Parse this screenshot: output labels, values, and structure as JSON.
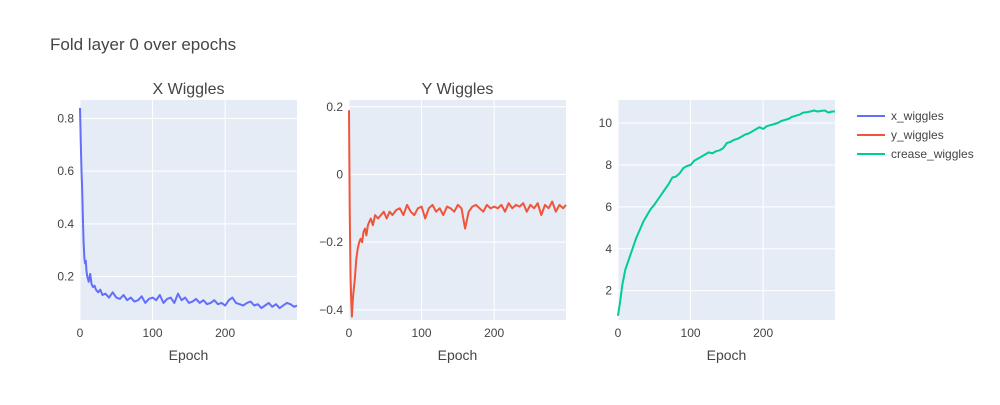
{
  "title": "Fold layer 0 over epochs",
  "colors": {
    "plot_bg": "#E5ECF6",
    "grid": "#FFFFFF",
    "x_wiggles": "#636EFA",
    "y_wiggles": "#EF553B",
    "crease_wiggles": "#00CC96"
  },
  "legend": {
    "placement": "right",
    "items": [
      "x_wiggles",
      "y_wiggles",
      "crease_wiggles"
    ]
  },
  "chart_data": [
    {
      "type": "line",
      "title": "X Wiggles",
      "xlabel": "Epoch",
      "ylabel": "",
      "xlim": [
        0,
        299
      ],
      "ylim": [
        0.035,
        0.87
      ],
      "xticks": [
        0,
        100,
        200
      ],
      "yticks": [
        0.2,
        0.4,
        0.6,
        0.8
      ],
      "ytick_labels": [
        "0.2",
        "0.4",
        "0.6",
        "0.8"
      ],
      "series": [
        {
          "name": "x_wiggles",
          "x": [
            0,
            1,
            2,
            3,
            4,
            5,
            6,
            7,
            8,
            9,
            10,
            12,
            14,
            16,
            18,
            20,
            22,
            25,
            28,
            31,
            35,
            40,
            45,
            50,
            55,
            60,
            65,
            70,
            75,
            80,
            85,
            90,
            95,
            100,
            105,
            110,
            115,
            120,
            125,
            130,
            135,
            140,
            145,
            150,
            155,
            160,
            165,
            170,
            175,
            180,
            185,
            190,
            195,
            200,
            205,
            210,
            215,
            220,
            225,
            230,
            235,
            240,
            245,
            250,
            255,
            260,
            265,
            270,
            275,
            280,
            285,
            290,
            295,
            299
          ],
          "y": [
            0.84,
            0.72,
            0.6,
            0.53,
            0.42,
            0.33,
            0.27,
            0.25,
            0.26,
            0.22,
            0.2,
            0.18,
            0.21,
            0.17,
            0.16,
            0.165,
            0.15,
            0.14,
            0.15,
            0.13,
            0.135,
            0.12,
            0.14,
            0.12,
            0.115,
            0.13,
            0.11,
            0.12,
            0.105,
            0.11,
            0.125,
            0.1,
            0.115,
            0.12,
            0.11,
            0.13,
            0.1,
            0.115,
            0.12,
            0.1,
            0.135,
            0.11,
            0.12,
            0.1,
            0.105,
            0.115,
            0.1,
            0.11,
            0.095,
            0.1,
            0.11,
            0.095,
            0.1,
            0.09,
            0.11,
            0.12,
            0.1,
            0.095,
            0.09,
            0.1,
            0.105,
            0.09,
            0.095,
            0.08,
            0.09,
            0.1,
            0.085,
            0.095,
            0.08,
            0.09,
            0.1,
            0.095,
            0.085,
            0.09
          ]
        }
      ]
    },
    {
      "type": "line",
      "title": "Y Wiggles",
      "xlabel": "Epoch",
      "ylabel": "",
      "xlim": [
        0,
        299
      ],
      "ylim": [
        -0.43,
        0.22
      ],
      "xticks": [
        0,
        100,
        200
      ],
      "yticks": [
        -0.4,
        -0.2,
        0,
        0.2
      ],
      "ytick_labels": [
        "−0.4",
        "−0.2",
        "0",
        "0.2"
      ],
      "series": [
        {
          "name": "y_wiggles",
          "x": [
            0,
            1,
            2,
            3,
            4,
            5,
            6,
            7,
            8,
            10,
            12,
            14,
            16,
            18,
            20,
            22,
            24,
            26,
            28,
            30,
            33,
            36,
            40,
            44,
            48,
            52,
            56,
            60,
            65,
            70,
            75,
            80,
            85,
            90,
            95,
            100,
            105,
            110,
            115,
            120,
            125,
            130,
            135,
            140,
            145,
            150,
            155,
            160,
            165,
            170,
            175,
            180,
            185,
            190,
            195,
            200,
            205,
            210,
            215,
            220,
            225,
            230,
            235,
            240,
            245,
            250,
            255,
            260,
            265,
            270,
            275,
            280,
            285,
            290,
            295,
            299
          ],
          "y": [
            0.19,
            -0.1,
            -0.3,
            -0.37,
            -0.42,
            -0.38,
            -0.35,
            -0.33,
            -0.31,
            -0.25,
            -0.22,
            -0.2,
            -0.19,
            -0.2,
            -0.17,
            -0.16,
            -0.18,
            -0.15,
            -0.14,
            -0.13,
            -0.15,
            -0.12,
            -0.13,
            -0.12,
            -0.11,
            -0.13,
            -0.11,
            -0.12,
            -0.105,
            -0.1,
            -0.12,
            -0.09,
            -0.11,
            -0.12,
            -0.1,
            -0.095,
            -0.13,
            -0.1,
            -0.09,
            -0.11,
            -0.1,
            -0.12,
            -0.095,
            -0.1,
            -0.11,
            -0.09,
            -0.1,
            -0.16,
            -0.11,
            -0.095,
            -0.09,
            -0.1,
            -0.11,
            -0.09,
            -0.1,
            -0.095,
            -0.1,
            -0.09,
            -0.11,
            -0.085,
            -0.1,
            -0.09,
            -0.095,
            -0.085,
            -0.11,
            -0.09,
            -0.1,
            -0.085,
            -0.12,
            -0.09,
            -0.1,
            -0.08,
            -0.11,
            -0.09,
            -0.1,
            -0.09
          ]
        }
      ]
    },
    {
      "type": "line",
      "title": "",
      "xlabel": "Epoch",
      "ylabel": "",
      "xlim": [
        0,
        299
      ],
      "ylim": [
        0.6,
        11.1
      ],
      "xticks": [
        0,
        100,
        200
      ],
      "yticks": [
        2,
        4,
        6,
        8,
        10
      ],
      "ytick_labels": [
        "2",
        "4",
        "6",
        "8",
        "10"
      ],
      "series": [
        {
          "name": "crease_wiggles",
          "x": [
            0,
            3,
            6,
            10,
            15,
            20,
            25,
            30,
            35,
            40,
            45,
            50,
            55,
            60,
            65,
            70,
            75,
            80,
            85,
            90,
            95,
            100,
            105,
            110,
            115,
            120,
            125,
            130,
            135,
            140,
            145,
            150,
            155,
            160,
            165,
            170,
            175,
            180,
            185,
            190,
            195,
            200,
            205,
            210,
            215,
            220,
            225,
            230,
            235,
            240,
            245,
            250,
            255,
            260,
            265,
            270,
            275,
            280,
            285,
            290,
            295,
            299
          ],
          "y": [
            0.8,
            1.5,
            2.3,
            3.0,
            3.5,
            4.0,
            4.5,
            4.9,
            5.3,
            5.6,
            5.9,
            6.1,
            6.35,
            6.6,
            6.85,
            7.1,
            7.4,
            7.45,
            7.6,
            7.85,
            7.95,
            8.0,
            8.2,
            8.3,
            8.4,
            8.5,
            8.6,
            8.55,
            8.65,
            8.7,
            8.8,
            9.05,
            9.1,
            9.2,
            9.25,
            9.35,
            9.45,
            9.5,
            9.6,
            9.7,
            9.8,
            9.72,
            9.85,
            9.9,
            9.95,
            10.0,
            10.1,
            10.15,
            10.2,
            10.3,
            10.35,
            10.4,
            10.5,
            10.52,
            10.55,
            10.6,
            10.55,
            10.58,
            10.6,
            10.5,
            10.55,
            10.55
          ]
        }
      ]
    }
  ]
}
